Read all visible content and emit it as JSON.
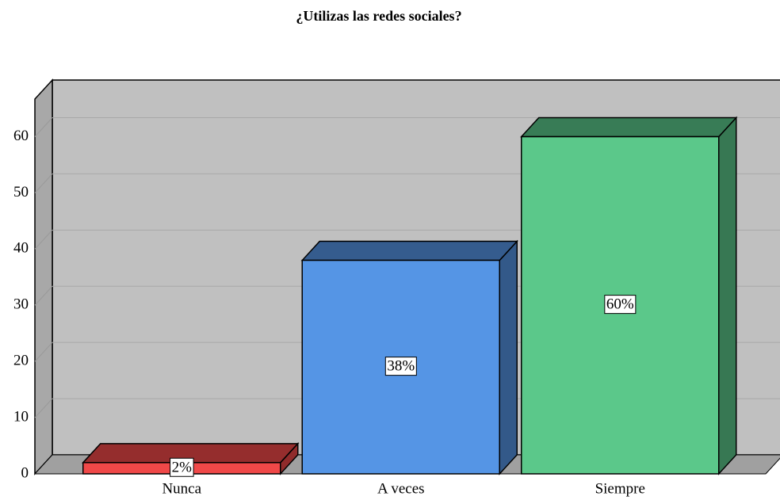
{
  "chart_data": {
    "type": "bar3d",
    "title": "¿Utilizas las redes sociales?",
    "categories": [
      "Nunca",
      "A veces",
      "Siempre"
    ],
    "values": [
      2,
      38,
      60
    ],
    "value_labels": [
      "2%",
      "38%",
      "60%"
    ],
    "colors": [
      "#f04848",
      "#5595e5",
      "#5bc88a"
    ],
    "ylim": [
      0,
      66.7
    ],
    "yticks": [
      0,
      10,
      20,
      30,
      40,
      50,
      60
    ],
    "grid": true
  }
}
